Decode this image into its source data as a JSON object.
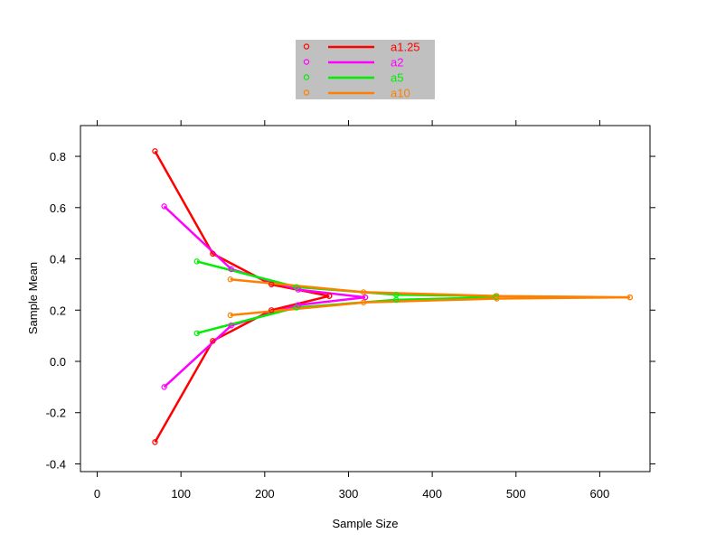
{
  "chart_data": {
    "type": "line",
    "title": "",
    "xlabel": "Sample Size",
    "ylabel": "Sample Mean",
    "xlim": [
      -20,
      660
    ],
    "ylim": [
      -0.43,
      0.92
    ],
    "xticks": [
      0,
      100,
      200,
      300,
      400,
      500,
      600
    ],
    "xtick_labels": [
      "0",
      "100",
      "200",
      "300",
      "400",
      "500",
      "600"
    ],
    "yticks": [
      -0.4,
      -0.2,
      0.0,
      0.2,
      0.4,
      0.6,
      0.8
    ],
    "ytick_labels": [
      "-0.4",
      "-0.2",
      "0.0",
      "0.2",
      "0.4",
      "0.6",
      "0.8"
    ],
    "grid": false,
    "legend_position": "top-center",
    "legend_background": "#c0c0c0",
    "series": [
      {
        "name": "a1.25",
        "color": "#ff0000",
        "upper": [
          [
            69,
            0.82
          ],
          [
            138,
            0.42
          ],
          [
            208,
            0.3
          ],
          [
            277,
            0.255
          ]
        ],
        "lower": [
          [
            69,
            -0.315
          ],
          [
            138,
            0.08
          ],
          [
            208,
            0.2
          ],
          [
            277,
            0.255
          ]
        ]
      },
      {
        "name": "a2",
        "color": "#ff00ff",
        "upper": [
          [
            80,
            0.605
          ],
          [
            160,
            0.36
          ],
          [
            240,
            0.28
          ],
          [
            320,
            0.25
          ]
        ],
        "lower": [
          [
            80,
            -0.1
          ],
          [
            160,
            0.14
          ],
          [
            240,
            0.22
          ],
          [
            320,
            0.25
          ]
        ]
      },
      {
        "name": "a5",
        "color": "#00ee00",
        "upper": [
          [
            119,
            0.39
          ],
          [
            238,
            0.29
          ],
          [
            357,
            0.26
          ],
          [
            476,
            0.255
          ]
        ],
        "lower": [
          [
            119,
            0.11
          ],
          [
            238,
            0.21
          ],
          [
            357,
            0.24
          ],
          [
            476,
            0.25
          ]
        ]
      },
      {
        "name": "a10",
        "color": "#ff7f00",
        "upper": [
          [
            159,
            0.32
          ],
          [
            318,
            0.27
          ],
          [
            477,
            0.255
          ],
          [
            636,
            0.25
          ]
        ],
        "lower": [
          [
            159,
            0.18
          ],
          [
            318,
            0.23
          ],
          [
            477,
            0.245
          ],
          [
            636,
            0.25
          ]
        ]
      }
    ]
  }
}
